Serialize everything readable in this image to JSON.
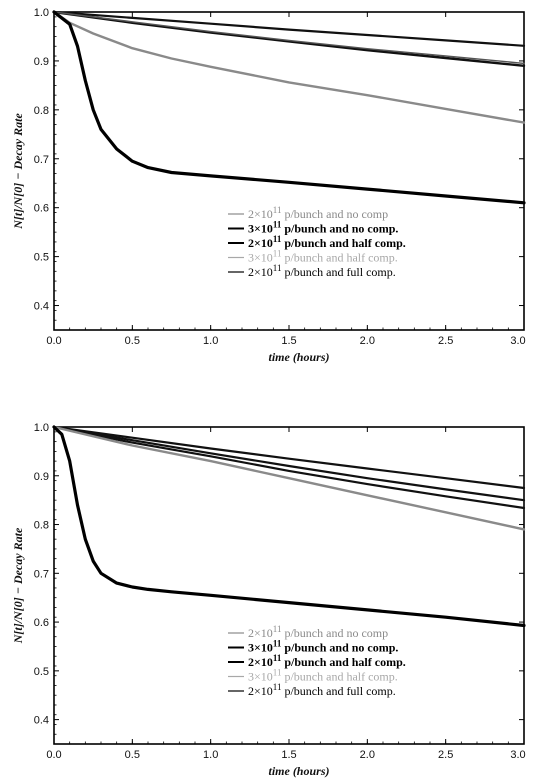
{
  "chart_data": [
    {
      "type": "line",
      "xlabel": "time (hours)",
      "ylabel": "N[t]/N[0] − Decay Rate",
      "xlim": [
        0,
        3
      ],
      "ylim": [
        0.35,
        1.0
      ],
      "x_ticks": [
        "0.0",
        "0.5",
        "1.0",
        "1.5",
        "2.0",
        "2.5",
        "3.0"
      ],
      "y_ticks": [
        "0.4",
        "0.5",
        "0.6",
        "0.7",
        "0.8",
        "0.9",
        "1.0"
      ],
      "legend": [
        {
          "prefix": "2×10",
          "exp": "11",
          "suffix": " p/bunch and no comp",
          "color": "#8a8a8a",
          "bold": false
        },
        {
          "prefix": "3×10",
          "exp": "11",
          "suffix": " p/bunch and no comp.",
          "color": "#000000",
          "bold": true
        },
        {
          "prefix": "2×10",
          "exp": "11",
          "suffix": " p/bunch and half comp.",
          "color": "#000000",
          "bold": true
        },
        {
          "prefix": "3×10",
          "exp": "11",
          "suffix": " p/bunch and half comp.",
          "color": "#a8a8a8",
          "bold": false
        },
        {
          "prefix": "2×10",
          "exp": "11",
          "suffix": " p/bunch and full comp.",
          "color": "#000000",
          "bold": false
        }
      ],
      "series": [
        {
          "x": [
            0,
            0.5,
            1.0,
            1.5,
            2.0,
            2.5,
            3.0
          ],
          "values": [
            1.0,
            0.988,
            0.976,
            0.964,
            0.953,
            0.942,
            0.931
          ],
          "color": "#111111",
          "width": 2.2
        },
        {
          "x": [
            0,
            0.5,
            1.0,
            1.5,
            2.0,
            2.5,
            3.0
          ],
          "values": [
            1.0,
            0.978,
            0.958,
            0.94,
            0.922,
            0.906,
            0.89
          ],
          "color": "#111111",
          "width": 2.4
        },
        {
          "x": [
            0,
            0.5,
            1.0,
            1.5,
            2.0,
            2.5,
            3.0
          ],
          "values": [
            1.0,
            0.98,
            0.96,
            0.942,
            0.925,
            0.91,
            0.895
          ],
          "color": "#555555",
          "width": 1.4
        },
        {
          "x": [
            0,
            0.1,
            0.25,
            0.5,
            0.75,
            1.0,
            1.5,
            2.0,
            2.5,
            3.0
          ],
          "values": [
            1.0,
            0.978,
            0.956,
            0.926,
            0.905,
            0.888,
            0.856,
            0.83,
            0.802,
            0.774
          ],
          "color": "#8a8a8a",
          "width": 2.4
        },
        {
          "x": [
            0,
            0.1,
            0.15,
            0.2,
            0.25,
            0.3,
            0.4,
            0.5,
            0.6,
            0.75,
            1.0,
            1.5,
            2.0,
            2.5,
            3.0
          ],
          "values": [
            1.0,
            0.975,
            0.93,
            0.86,
            0.8,
            0.76,
            0.72,
            0.695,
            0.682,
            0.672,
            0.665,
            0.652,
            0.638,
            0.624,
            0.61
          ],
          "color": "#000000",
          "width": 3.2
        }
      ]
    },
    {
      "type": "line",
      "xlabel": "time (hours)",
      "ylabel": "N[t]/N[0] − Decay Rate",
      "xlim": [
        0,
        3
      ],
      "ylim": [
        0.35,
        1.0
      ],
      "x_ticks": [
        "0.0",
        "0.5",
        "1.0",
        "1.5",
        "2.0",
        "2.5",
        "3.0"
      ],
      "y_ticks": [
        "0.4",
        "0.5",
        "0.6",
        "0.7",
        "0.8",
        "0.9",
        "1.0"
      ],
      "legend": [
        {
          "prefix": "2×10",
          "exp": "11",
          "suffix": " p/bunch and no comp",
          "color": "#8a8a8a",
          "bold": false
        },
        {
          "prefix": "3×10",
          "exp": "11",
          "suffix": " p/bunch and no comp.",
          "color": "#000000",
          "bold": true
        },
        {
          "prefix": "2×10",
          "exp": "11",
          "suffix": " p/bunch and half comp.",
          "color": "#000000",
          "bold": true
        },
        {
          "prefix": "3×10",
          "exp": "11",
          "suffix": " p/bunch and half comp.",
          "color": "#a8a8a8",
          "bold": false
        },
        {
          "prefix": "2×10",
          "exp": "11",
          "suffix": " p/bunch and full comp.",
          "color": "#000000",
          "bold": false
        }
      ],
      "series": [
        {
          "x": [
            0,
            0.5,
            1.0,
            1.5,
            2.0,
            2.5,
            3.0
          ],
          "values": [
            1.0,
            0.978,
            0.956,
            0.935,
            0.915,
            0.895,
            0.875
          ],
          "color": "#111111",
          "width": 2.2
        },
        {
          "x": [
            0,
            0.5,
            1.0,
            1.5,
            2.0,
            2.5,
            3.0
          ],
          "values": [
            1.0,
            0.973,
            0.946,
            0.92,
            0.895,
            0.872,
            0.85
          ],
          "color": "#111111",
          "width": 2.2
        },
        {
          "x": [
            0,
            0.5,
            1.0,
            1.5,
            2.0,
            2.5,
            3.0
          ],
          "values": [
            1.0,
            0.968,
            0.94,
            0.91,
            0.883,
            0.858,
            0.834
          ],
          "color": "#111111",
          "width": 2.2
        },
        {
          "x": [
            0,
            0.5,
            1.0,
            1.5,
            2.0,
            2.5,
            3.0
          ],
          "values": [
            1.0,
            0.962,
            0.93,
            0.895,
            0.86,
            0.825,
            0.79
          ],
          "color": "#8a8a8a",
          "width": 2.4
        },
        {
          "x": [
            0,
            0.05,
            0.1,
            0.15,
            0.2,
            0.25,
            0.3,
            0.4,
            0.5,
            0.6,
            0.75,
            1.0,
            1.5,
            2.0,
            2.5,
            3.0
          ],
          "values": [
            1.0,
            0.985,
            0.93,
            0.84,
            0.77,
            0.725,
            0.7,
            0.68,
            0.672,
            0.667,
            0.662,
            0.655,
            0.64,
            0.625,
            0.61,
            0.593
          ],
          "color": "#000000",
          "width": 3.2
        }
      ]
    }
  ]
}
